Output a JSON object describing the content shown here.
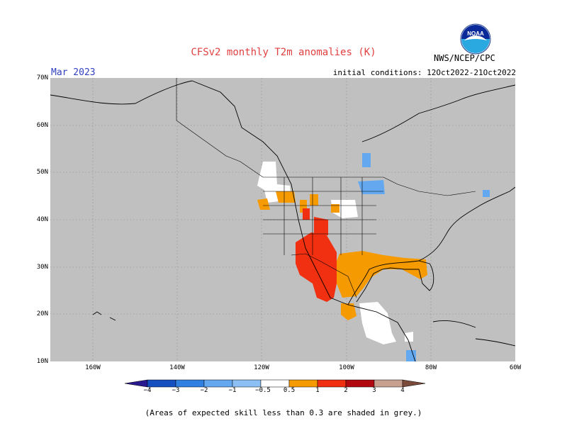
{
  "header": {
    "title": "CFSv2 monthly T2m anomalies (K)",
    "month": "Mar 2023",
    "initial_conditions": "initial conditions: 12Oct2022-21Oct2022",
    "agency": "NWS/NCEP/CPC",
    "logo_text": "NOAA"
  },
  "map": {
    "region": "North America",
    "lat_range": [
      10,
      70
    ],
    "lon_range": [
      -170,
      -60
    ],
    "lat_labels": [
      "70N",
      "60N",
      "50N",
      "40N",
      "30N",
      "20N",
      "10N"
    ],
    "lon_labels": [
      "160W",
      "140W",
      "120W",
      "100W",
      "80W",
      "60W"
    ],
    "background_color": "#c0c0c0",
    "grid": "dotted"
  },
  "colorbar": {
    "labels": [
      "−4",
      "−3",
      "−2",
      "−1",
      "−0.5",
      "0.5",
      "1",
      "2",
      "3",
      "4"
    ],
    "colors": [
      "#2a1a90",
      "#1550c0",
      "#2f80e0",
      "#64a8f0",
      "#ffffff",
      "#f59a00",
      "#f03010",
      "#b00a10",
      "#c8a090",
      "#7a4a3a"
    ]
  },
  "footer": {
    "note": "(Areas of expected skill less than 0.3 are shaded in grey.)"
  }
}
